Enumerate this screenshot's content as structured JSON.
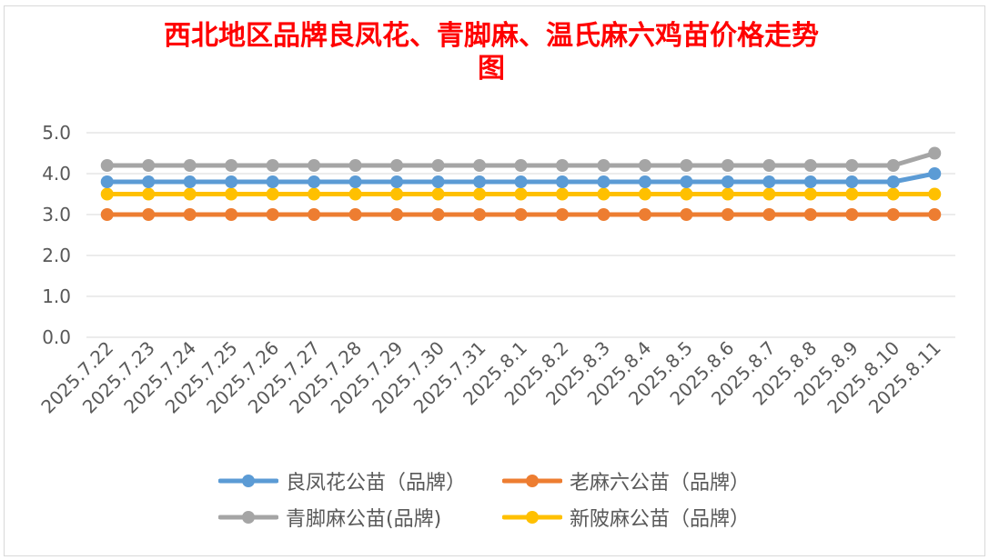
{
  "chart_data": {
    "type": "line",
    "title": "西北地区品牌良凤花、青脚麻、温氏麻六鸡苗价格走势图",
    "title_lines": [
      "西北地区品牌良凤花、青脚麻、温氏麻六鸡苗价格走势",
      "图"
    ],
    "xlabel": "",
    "ylabel": "",
    "ylim": [
      0,
      5
    ],
    "yticks": [
      "0.0",
      "1.0",
      "2.0",
      "3.0",
      "4.0",
      "5.0"
    ],
    "grid": "horizontal",
    "legend_position": "bottom",
    "categories": [
      "2025.7.22",
      "2025.7.23",
      "2025.7.24",
      "2025.7.25",
      "2025.7.26",
      "2025.7.27",
      "2025.7.28",
      "2025.7.29",
      "2025.7.30",
      "2025.7.31",
      "2025.8.1",
      "2025.8.2",
      "2025.8.3",
      "2025.8.4",
      "2025.8.5",
      "2025.8.6",
      "2025.8.7",
      "2025.8.8",
      "2025.8.9",
      "2025.8.10",
      "2025.8.11"
    ],
    "series": [
      {
        "name": "良凤花公苗（品牌）",
        "color": "#5b9bd5",
        "values": [
          3.8,
          3.8,
          3.8,
          3.8,
          3.8,
          3.8,
          3.8,
          3.8,
          3.8,
          3.8,
          3.8,
          3.8,
          3.8,
          3.8,
          3.8,
          3.8,
          3.8,
          3.8,
          3.8,
          3.8,
          4.0
        ]
      },
      {
        "name": "老麻六公苗（品牌）",
        "color": "#ed7d31",
        "values": [
          3.0,
          3.0,
          3.0,
          3.0,
          3.0,
          3.0,
          3.0,
          3.0,
          3.0,
          3.0,
          3.0,
          3.0,
          3.0,
          3.0,
          3.0,
          3.0,
          3.0,
          3.0,
          3.0,
          3.0,
          3.0
        ]
      },
      {
        "name": "青脚麻公苗(品牌)",
        "color": "#a5a5a5",
        "values": [
          4.2,
          4.2,
          4.2,
          4.2,
          4.2,
          4.2,
          4.2,
          4.2,
          4.2,
          4.2,
          4.2,
          4.2,
          4.2,
          4.2,
          4.2,
          4.2,
          4.2,
          4.2,
          4.2,
          4.2,
          4.5
        ]
      },
      {
        "name": "新陂麻公苗（品牌）",
        "color": "#ffc000",
        "values": [
          3.5,
          3.5,
          3.5,
          3.5,
          3.5,
          3.5,
          3.5,
          3.5,
          3.5,
          3.5,
          3.5,
          3.5,
          3.5,
          3.5,
          3.5,
          3.5,
          3.5,
          3.5,
          3.5,
          3.5,
          3.5
        ]
      }
    ],
    "legend_order": [
      0,
      1,
      2,
      3
    ]
  }
}
